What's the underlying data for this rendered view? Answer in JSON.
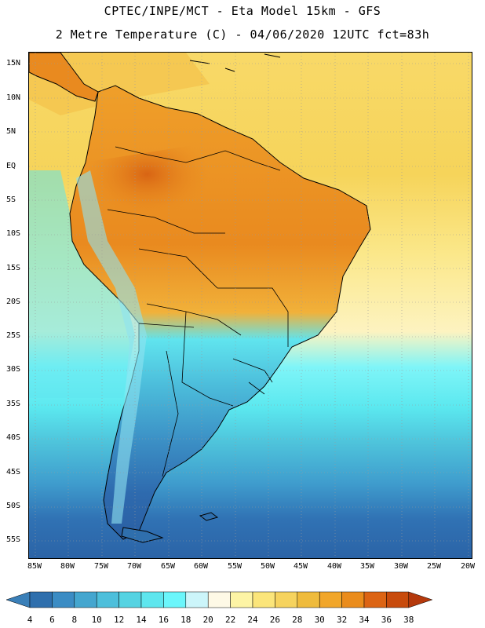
{
  "header": {
    "line1": "CPTEC/INPE/MCT -  Eta Model 15km - GFS",
    "line2": "2 Metre Temperature (C) - 04/06/2020 12UTC fct=83h"
  },
  "axes": {
    "lat_labels": [
      "15N",
      "10N",
      "5N",
      "EQ",
      "5S",
      "10S",
      "15S",
      "20S",
      "25S",
      "30S",
      "35S",
      "40S",
      "45S",
      "50S",
      "55S"
    ],
    "lon_labels": [
      "85W",
      "80W",
      "75W",
      "70W",
      "65W",
      "60W",
      "55W",
      "50W",
      "45W",
      "40W",
      "35W",
      "30W",
      "25W",
      "20W"
    ]
  },
  "colorbar": {
    "ticks": [
      "4",
      "6",
      "8",
      "10",
      "12",
      "14",
      "16",
      "18",
      "20",
      "22",
      "24",
      "26",
      "28",
      "30",
      "32",
      "34",
      "36",
      "38"
    ],
    "colors": [
      "#3a7fb8",
      "#2f6fad",
      "#3b8cc4",
      "#44a6cf",
      "#4dbfdb",
      "#55d3e2",
      "#5ee6ee",
      "#6bf6fb",
      "#ccf5fa",
      "#fef9e6",
      "#fdf4a5",
      "#fbe57a",
      "#f6d35e",
      "#efbb3c",
      "#f1a62a",
      "#ea8c1c",
      "#dc6414",
      "#c84b0c",
      "#b5390c"
    ]
  }
}
